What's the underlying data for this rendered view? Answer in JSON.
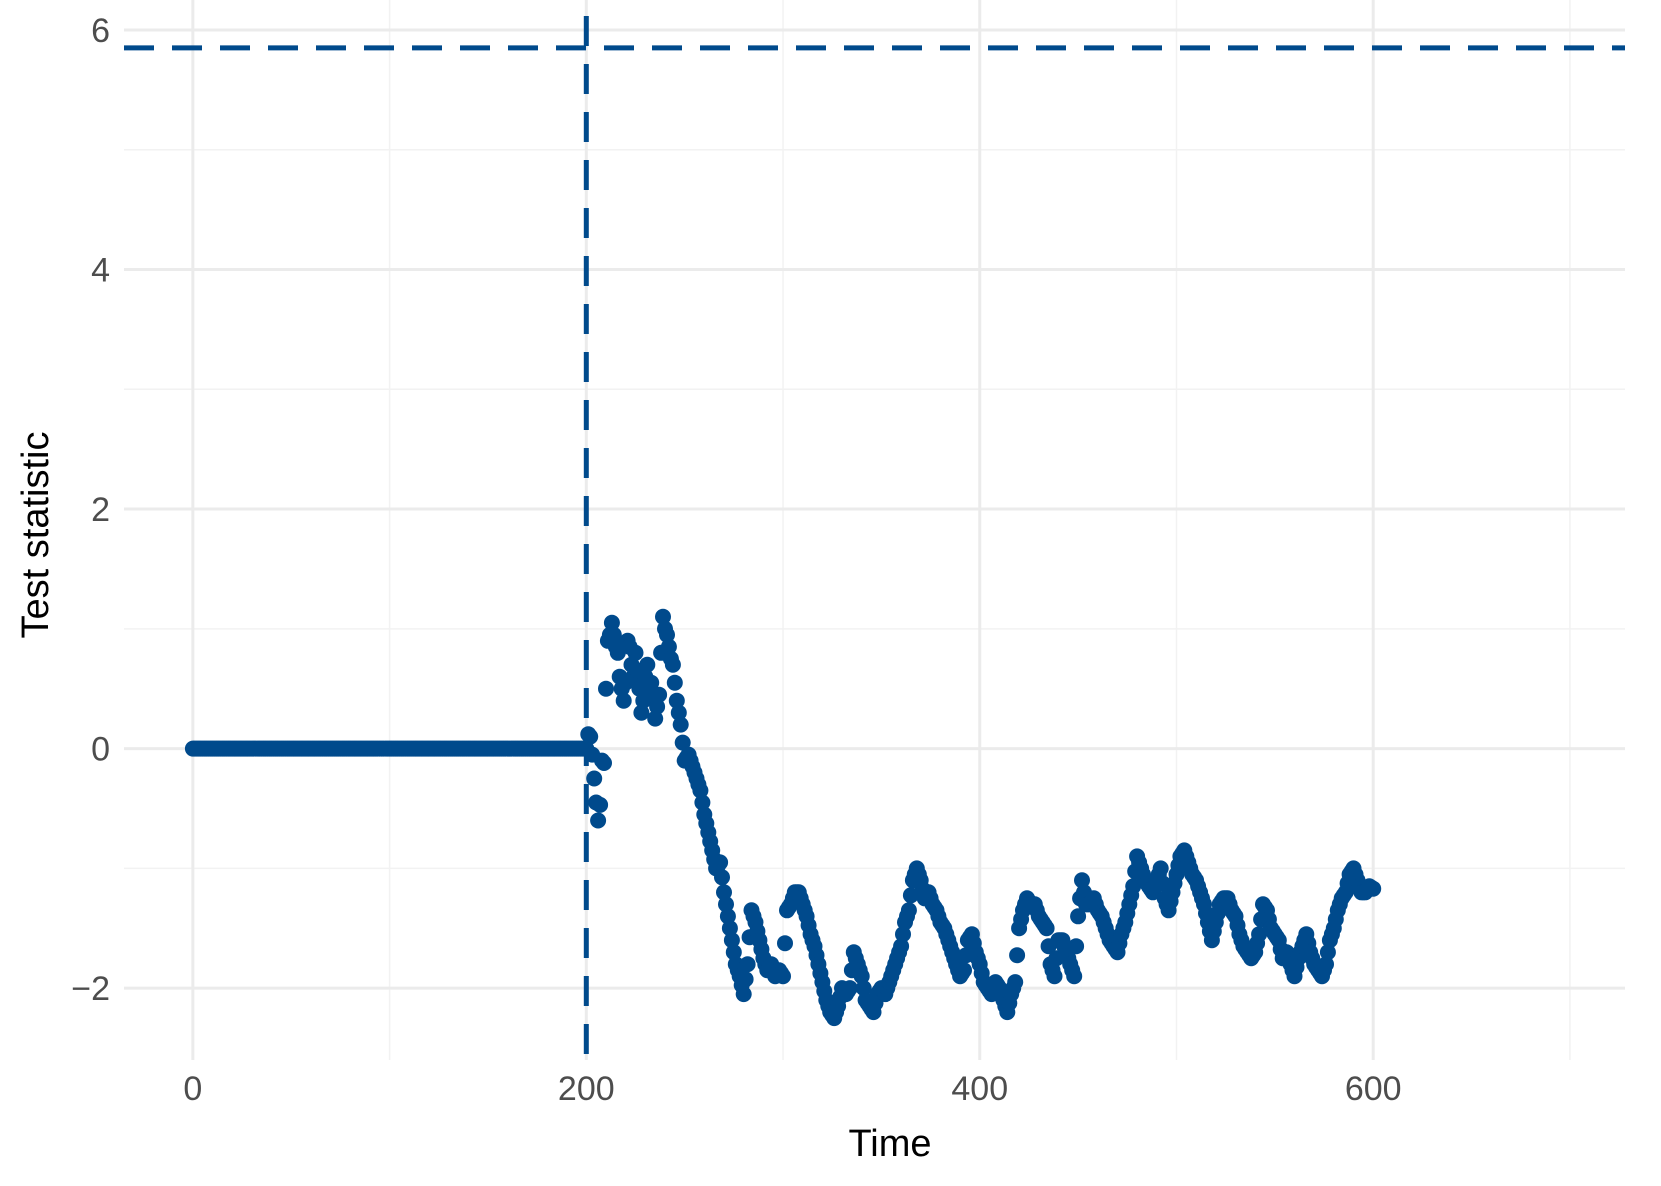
{
  "chart_data": {
    "type": "scatter",
    "title": "",
    "xlabel": "Time",
    "ylabel": "Test statistic",
    "xlim": [
      -35,
      728
    ],
    "ylim": [
      -2.6,
      6.25
    ],
    "x_major_ticks": [
      0,
      200,
      400,
      600
    ],
    "x_minor_ticks": [
      100,
      300,
      500,
      700
    ],
    "y_major_ticks": [
      -2,
      0,
      2,
      4,
      6
    ],
    "y_minor_ticks": [
      -1,
      1,
      3,
      5
    ],
    "x_tick_labels": [
      "0",
      "200",
      "400",
      "600"
    ],
    "y_tick_labels": [
      "−2",
      "0",
      "2",
      "4",
      "6"
    ],
    "grid": true,
    "legend": "none",
    "point_color": "#004a8c",
    "reference_lines": [
      {
        "orientation": "horizontal",
        "value": 5.85,
        "style": "dashed",
        "color": "#004a8c"
      },
      {
        "orientation": "vertical",
        "value": 200,
        "style": "dashed",
        "color": "#004a8c"
      }
    ],
    "series_knots": [
      [
        200,
        0.0
      ],
      [
        201,
        0.12
      ],
      [
        202,
        0.1
      ],
      [
        203,
        -0.05
      ],
      [
        204,
        -0.25
      ],
      [
        205,
        -0.45
      ],
      [
        206,
        -0.6
      ],
      [
        207,
        -0.47
      ],
      [
        208,
        -0.1
      ],
      [
        209,
        -0.12
      ],
      [
        210,
        0.5
      ],
      [
        211,
        0.9
      ],
      [
        212,
        0.95
      ],
      [
        213,
        1.05
      ],
      [
        214,
        0.95
      ],
      [
        215,
        0.85
      ],
      [
        216,
        0.8
      ],
      [
        217,
        0.6
      ],
      [
        218,
        0.5
      ],
      [
        219,
        0.4
      ],
      [
        220,
        0.55
      ],
      [
        221,
        0.9
      ],
      [
        222,
        0.85
      ],
      [
        223,
        0.7
      ],
      [
        224,
        0.6
      ],
      [
        225,
        0.8
      ],
      [
        226,
        0.65
      ],
      [
        227,
        0.5
      ],
      [
        228,
        0.3
      ],
      [
        229,
        0.4
      ],
      [
        230,
        0.6
      ],
      [
        231,
        0.7
      ],
      [
        232,
        0.5
      ],
      [
        233,
        0.55
      ],
      [
        234,
        0.45
      ],
      [
        235,
        0.25
      ],
      [
        236,
        0.35
      ],
      [
        237,
        0.45
      ],
      [
        238,
        0.8
      ],
      [
        239,
        1.1
      ],
      [
        240,
        1.0
      ],
      [
        241,
        0.95
      ],
      [
        242,
        0.85
      ],
      [
        243,
        0.75
      ],
      [
        244,
        0.7
      ],
      [
        245,
        0.55
      ],
      [
        246,
        0.4
      ],
      [
        247,
        0.3
      ],
      [
        248,
        0.2
      ],
      [
        250,
        -0.1
      ],
      [
        252,
        -0.05
      ],
      [
        255,
        -0.2
      ],
      [
        258,
        -0.35
      ],
      [
        260,
        -0.55
      ],
      [
        262,
        -0.7
      ],
      [
        264,
        -0.85
      ],
      [
        266,
        -1.0
      ],
      [
        268,
        -0.95
      ],
      [
        270,
        -1.2
      ],
      [
        272,
        -1.4
      ],
      [
        274,
        -1.6
      ],
      [
        276,
        -1.8
      ],
      [
        278,
        -1.9
      ],
      [
        280,
        -2.05
      ],
      [
        282,
        -1.8
      ],
      [
        284,
        -1.35
      ],
      [
        286,
        -1.45
      ],
      [
        288,
        -1.6
      ],
      [
        290,
        -1.75
      ],
      [
        292,
        -1.85
      ],
      [
        294,
        -1.8
      ],
      [
        296,
        -1.9
      ],
      [
        298,
        -1.85
      ],
      [
        300,
        -1.9
      ],
      [
        302,
        -1.35
      ],
      [
        304,
        -1.3
      ],
      [
        306,
        -1.2
      ],
      [
        308,
        -1.2
      ],
      [
        310,
        -1.3
      ],
      [
        312,
        -1.4
      ],
      [
        314,
        -1.55
      ],
      [
        316,
        -1.65
      ],
      [
        318,
        -1.8
      ],
      [
        320,
        -1.95
      ],
      [
        322,
        -2.1
      ],
      [
        324,
        -2.2
      ],
      [
        326,
        -2.25
      ],
      [
        328,
        -2.15
      ],
      [
        330,
        -2.0
      ],
      [
        332,
        -2.05
      ],
      [
        334,
        -2.0
      ],
      [
        336,
        -1.7
      ],
      [
        338,
        -1.8
      ],
      [
        340,
        -1.9
      ],
      [
        342,
        -2.1
      ],
      [
        344,
        -2.15
      ],
      [
        346,
        -2.2
      ],
      [
        348,
        -2.05
      ],
      [
        350,
        -2.0
      ],
      [
        352,
        -2.05
      ],
      [
        354,
        -1.95
      ],
      [
        356,
        -1.85
      ],
      [
        358,
        -1.75
      ],
      [
        360,
        -1.65
      ],
      [
        362,
        -1.45
      ],
      [
        364,
        -1.35
      ],
      [
        366,
        -1.1
      ],
      [
        368,
        -1.0
      ],
      [
        370,
        -1.1
      ],
      [
        372,
        -1.25
      ],
      [
        374,
        -1.2
      ],
      [
        376,
        -1.3
      ],
      [
        378,
        -1.35
      ],
      [
        380,
        -1.45
      ],
      [
        382,
        -1.5
      ],
      [
        384,
        -1.6
      ],
      [
        386,
        -1.7
      ],
      [
        388,
        -1.8
      ],
      [
        390,
        -1.9
      ],
      [
        392,
        -1.85
      ],
      [
        394,
        -1.6
      ],
      [
        396,
        -1.55
      ],
      [
        398,
        -1.7
      ],
      [
        400,
        -1.8
      ],
      [
        402,
        -1.95
      ],
      [
        404,
        -2.0
      ],
      [
        406,
        -2.05
      ],
      [
        408,
        -1.95
      ],
      [
        410,
        -2.0
      ],
      [
        412,
        -2.1
      ],
      [
        414,
        -2.2
      ],
      [
        416,
        -2.05
      ],
      [
        418,
        -1.95
      ],
      [
        420,
        -1.5
      ],
      [
        422,
        -1.35
      ],
      [
        424,
        -1.25
      ],
      [
        426,
        -1.3
      ],
      [
        428,
        -1.3
      ],
      [
        430,
        -1.4
      ],
      [
        432,
        -1.45
      ],
      [
        434,
        -1.5
      ],
      [
        436,
        -1.8
      ],
      [
        438,
        -1.9
      ],
      [
        440,
        -1.6
      ],
      [
        442,
        -1.6
      ],
      [
        444,
        -1.7
      ],
      [
        446,
        -1.8
      ],
      [
        448,
        -1.9
      ],
      [
        450,
        -1.4
      ],
      [
        452,
        -1.1
      ],
      [
        454,
        -1.3
      ],
      [
        456,
        -1.3
      ],
      [
        458,
        -1.25
      ],
      [
        460,
        -1.35
      ],
      [
        462,
        -1.4
      ],
      [
        464,
        -1.5
      ],
      [
        466,
        -1.6
      ],
      [
        468,
        -1.65
      ],
      [
        470,
        -1.7
      ],
      [
        472,
        -1.55
      ],
      [
        474,
        -1.45
      ],
      [
        476,
        -1.3
      ],
      [
        478,
        -1.15
      ],
      [
        480,
        -0.9
      ],
      [
        482,
        -1.0
      ],
      [
        484,
        -1.1
      ],
      [
        486,
        -1.15
      ],
      [
        488,
        -1.2
      ],
      [
        490,
        -1.1
      ],
      [
        492,
        -1.0
      ],
      [
        494,
        -1.25
      ],
      [
        496,
        -1.35
      ],
      [
        498,
        -1.2
      ],
      [
        500,
        -1.05
      ],
      [
        502,
        -0.9
      ],
      [
        504,
        -0.85
      ],
      [
        506,
        -0.95
      ],
      [
        508,
        -1.05
      ],
      [
        510,
        -1.1
      ],
      [
        512,
        -1.2
      ],
      [
        514,
        -1.3
      ],
      [
        516,
        -1.45
      ],
      [
        518,
        -1.6
      ],
      [
        520,
        -1.45
      ],
      [
        522,
        -1.3
      ],
      [
        524,
        -1.25
      ],
      [
        526,
        -1.25
      ],
      [
        528,
        -1.35
      ],
      [
        530,
        -1.4
      ],
      [
        532,
        -1.55
      ],
      [
        534,
        -1.65
      ],
      [
        536,
        -1.7
      ],
      [
        538,
        -1.75
      ],
      [
        540,
        -1.7
      ],
      [
        542,
        -1.55
      ],
      [
        544,
        -1.3
      ],
      [
        546,
        -1.35
      ],
      [
        548,
        -1.5
      ],
      [
        550,
        -1.55
      ],
      [
        552,
        -1.6
      ],
      [
        554,
        -1.75
      ],
      [
        556,
        -1.7
      ],
      [
        558,
        -1.8
      ],
      [
        560,
        -1.9
      ],
      [
        562,
        -1.75
      ],
      [
        564,
        -1.65
      ],
      [
        566,
        -1.55
      ],
      [
        568,
        -1.7
      ],
      [
        570,
        -1.8
      ],
      [
        572,
        -1.85
      ],
      [
        574,
        -1.9
      ],
      [
        576,
        -1.8
      ],
      [
        578,
        -1.6
      ],
      [
        580,
        -1.5
      ],
      [
        582,
        -1.35
      ],
      [
        584,
        -1.25
      ],
      [
        586,
        -1.2
      ],
      [
        588,
        -1.05
      ],
      [
        590,
        -1.0
      ],
      [
        592,
        -1.1
      ],
      [
        594,
        -1.2
      ],
      [
        596,
        -1.2
      ],
      [
        598,
        -1.15
      ],
      [
        600,
        -1.17
      ]
    ]
  }
}
